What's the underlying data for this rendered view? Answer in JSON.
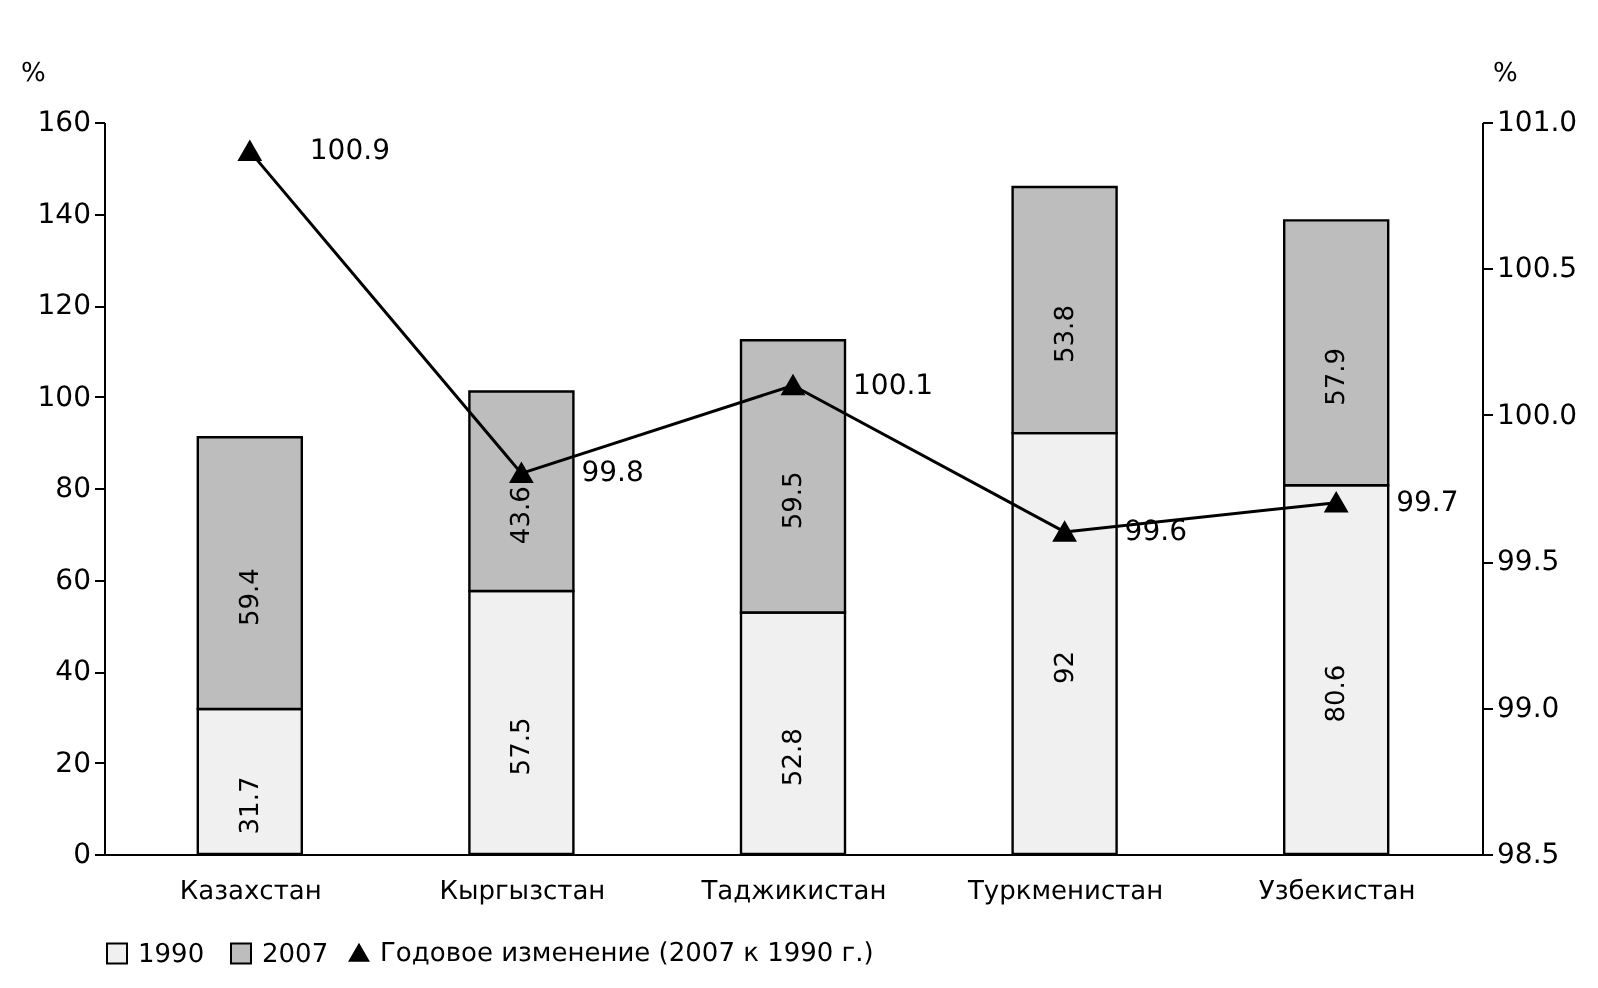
{
  "chart_data": {
    "type": "bar",
    "stacked": true,
    "ylabel": "%",
    "y2label": "%",
    "categories": [
      "Казахстан",
      "Кыргызстан",
      "Таджикистан",
      "Туркменистан",
      "Узбекистан"
    ],
    "series": [
      {
        "name": "1990",
        "type": "bar",
        "color": "#f0f0f0",
        "values": [
          31.7,
          57.5,
          52.8,
          92,
          80.6
        ]
      },
      {
        "name": "2007",
        "type": "bar",
        "color": "#bdbdbd",
        "values": [
          59.4,
          43.6,
          59.5,
          53.8,
          57.9
        ]
      },
      {
        "name": "Годовое изменение (2007 к 1990 г.)",
        "type": "line",
        "axis": "y2",
        "color": "#000000",
        "marker": "triangle",
        "line_style": "solid",
        "values": [
          100.9,
          99.8,
          100.1,
          99.6,
          99.7
        ]
      }
    ],
    "ylim": [
      0,
      160
    ],
    "yticks": [
      0,
      20,
      40,
      60,
      80,
      100,
      120,
      140,
      160
    ],
    "y2lim": [
      98.5,
      101.0
    ],
    "y2ticks": [
      {
        "value": 98.5,
        "label": "98.5"
      },
      {
        "value": 99.0,
        "label": "99.0"
      },
      {
        "value": 99.5,
        "label": "99.5"
      },
      {
        "value": 100.0,
        "label": "100.0"
      },
      {
        "value": 100.5,
        "label": "100.5"
      },
      {
        "value": 101.0,
        "label": "101.0"
      }
    ],
    "data_labels": true,
    "grid": false,
    "legend": "bottom"
  }
}
